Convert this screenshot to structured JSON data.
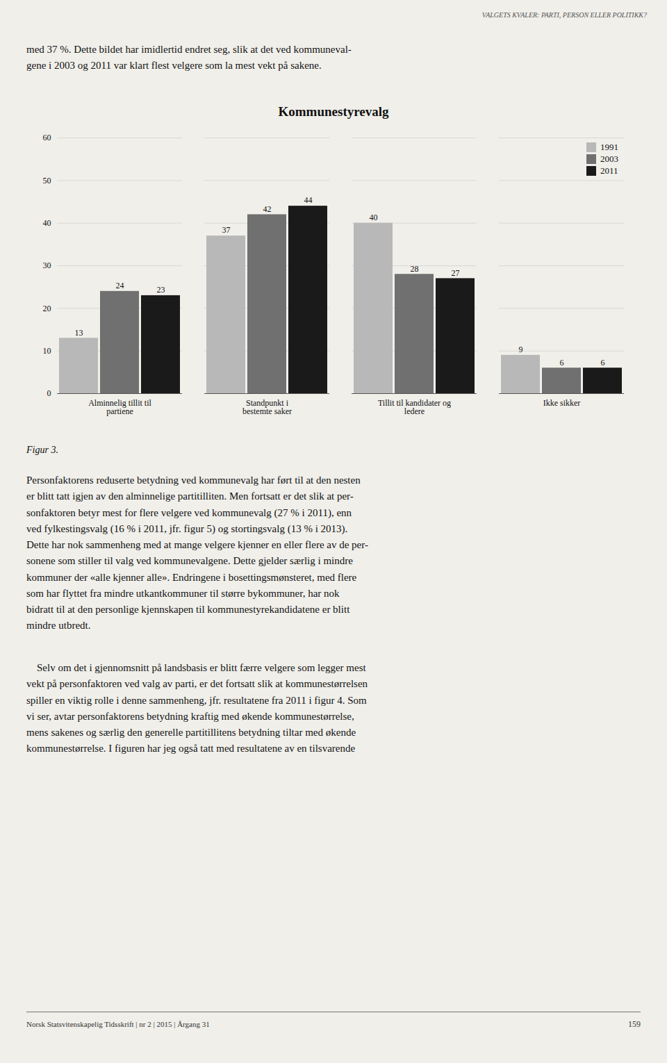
{
  "header_text": "VALGETS KVALER: PARTI, PERSON ELLER POLITIKK?",
  "intro_text": "med 37 %. Dette bildet har imidlertid endret seg, slik at det ved kommuneval-\ngene i 2003 og 2011 var klart flest velgere som la mest vekt på sakene.",
  "chart_data": {
    "type": "bar",
    "title": "Kommunestyrevalg",
    "categories": [
      "Alminnelig tillit til\npartiene",
      "Standpunkt i\nbestemte saker",
      "Tillit til kandidater og\nledere",
      "Ikke sikker"
    ],
    "series": [
      {
        "name": "1991",
        "color": "#b8b8b8",
        "values": [
          13,
          37,
          40,
          9
        ]
      },
      {
        "name": "2003",
        "color": "#707070",
        "values": [
          24,
          42,
          28,
          6
        ]
      },
      {
        "name": "2011",
        "color": "#1a1a1a",
        "values": [
          23,
          44,
          27,
          6
        ]
      }
    ],
    "ylim": [
      0,
      60
    ],
    "yticks": [
      0,
      10,
      20,
      30,
      40,
      50,
      60
    ],
    "grid": true,
    "legend": "upper right",
    "data_labels": true
  },
  "figure_label": "Figur 3.",
  "body_text1": "Personfaktorens reduserte betydning ved kommunevalg har ført til at den nesten\ner blitt tatt igjen av den alminnelige partitilliten. Men fortsatt er det slik at per-\nsonfaktoren betyr mest for flere velgere ved kommunevalg (27 % i 2011), enn\nved fylkestingsvalg (16 % i 2011, jfr. figur 5) og stortingsvalg (13 % i 2013).\nDette har nok sammenheng med at mange velgere kjenner en eller flere av de per-\nsonene som stiller til valg ved kommunevalgene. Dette gjelder særlig i mindre\nkommuner der «alle kjenner alle». Endringene i bosettingsmønsteret, med flere\nsom har flyttet fra mindre utkantkommuner til større bykommuner, har nok\nbidratt til at den personlige kjennskapen til kommunestyrekandidatene er blitt\nmindre utbredt.",
  "body_text2": "    Selv om det i gjennomsnitt på landsbasis er blitt færre velgere som legger mest\nvekt på personfaktoren ved valg av parti, er det fortsatt slik at kommunestørrelsen\nspiller en viktig rolle i denne sammenheng, jfr. resultatene fra 2011 i figur 4. Som\nvi ser, avtar personfaktorens betydning kraftig med økende kommunestørrelse,\nmens sakenes og særlig den generelle partitillitens betydning tiltar med økende\nkommunestørrelse. I figuren har jeg også tatt med resultatene av en tilsvarende",
  "footer_text": "Norsk Statsvitenskapelig Tidsskrift | nr 2 | 2015 | Årgang 31",
  "footer_page": "159"
}
